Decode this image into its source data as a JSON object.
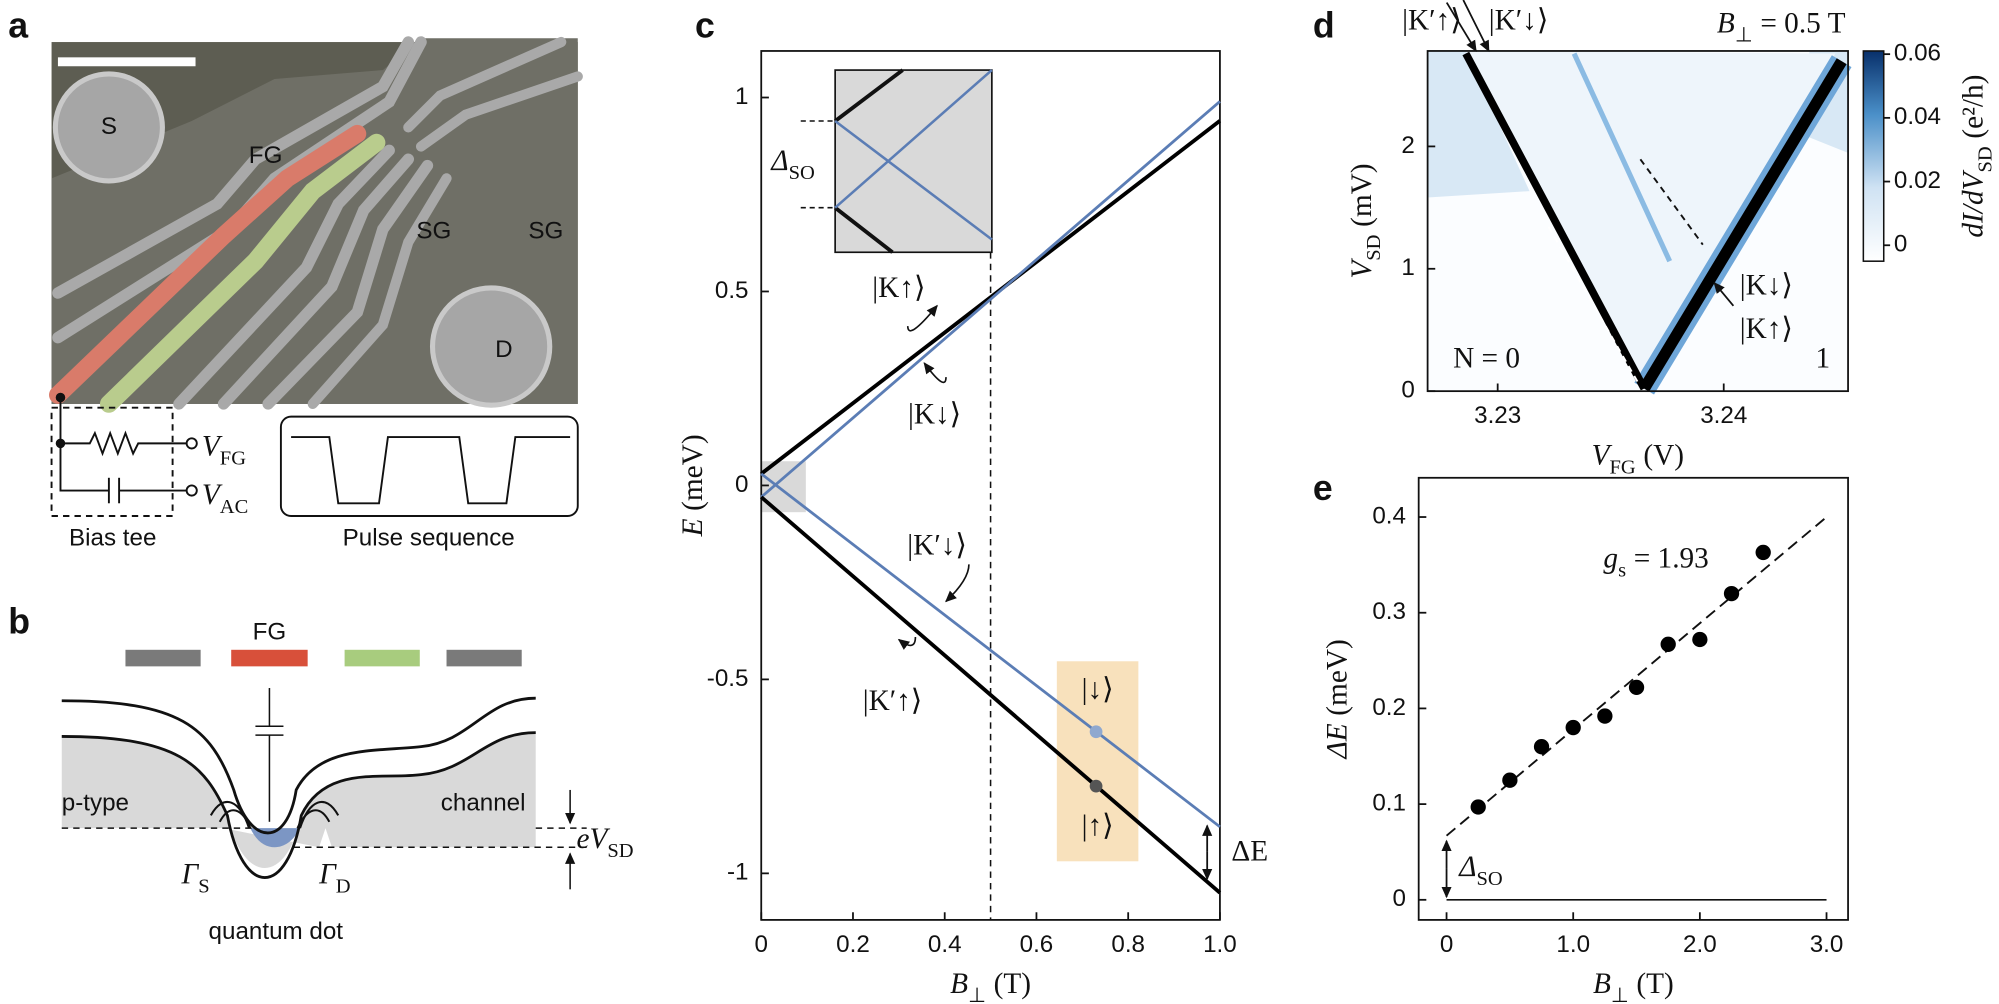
{
  "panel_labels": [
    "a",
    "b",
    "c",
    "d",
    "e"
  ],
  "panel_a": {
    "labels": [
      "S",
      "FG",
      "SG",
      "SG",
      "D"
    ],
    "v_fg": {
      "main": "V",
      "sub": "FG"
    },
    "v_ac": {
      "main": "V",
      "sub": "AC"
    },
    "bias_tee": "Bias tee",
    "pulse": "Pulse sequence"
  },
  "panel_b": {
    "gate": "FG",
    "left": "p-type",
    "right": "channel",
    "bias": {
      "main": "eV",
      "sub": "SD"
    },
    "gamma_s": {
      "main": "Γ",
      "sub": "S"
    },
    "gamma_d": {
      "main": "Γ",
      "sub": "D"
    },
    "dot": "quantum dot"
  },
  "chart_data": [
    {
      "type": "line",
      "x_label": {
        "main": "B",
        "sub": "⊥",
        "rest": "(T)"
      },
      "y_label": {
        "main": "E",
        "rest": "(meV)"
      },
      "xlim": [
        0,
        1
      ],
      "ylim": [
        -1.12,
        1.12
      ],
      "xticks": [
        0,
        0.2,
        0.4,
        0.6,
        0.8,
        {
          "value": 1,
          "label": "1.0"
        }
      ],
      "yticks": [
        -1,
        -0.5,
        0,
        0.5,
        1
      ],
      "x": [
        0,
        1
      ],
      "series": [
        {
          "name": "|K↑⟩",
          "color": "#000000",
          "values": [
            0.03,
            0.94
          ]
        },
        {
          "name": "|K↓⟩",
          "color": "#5b7db5",
          "values": [
            -0.03,
            0.99
          ]
        },
        {
          "name": "|K′↓⟩",
          "color": "#5b7db5",
          "values": [
            0.03,
            -0.88
          ]
        },
        {
          "name": "|K′↑⟩",
          "color": "#000000",
          "values": [
            -0.03,
            -1.05
          ]
        }
      ],
      "marker_line_x": 0.5,
      "points": {
        "x": [
          0.73,
          0.73
        ],
        "values": [
          -0.635,
          -0.775
        ],
        "labels": [
          "|↓⟩",
          "|↑⟩"
        ],
        "colors": [
          "#8fa8cf",
          "#555555"
        ]
      },
      "delta_label": "ΔE",
      "inset_label": {
        "main": "Δ",
        "sub": "SO"
      }
    },
    {
      "type": "heatmap",
      "title": {
        "main": "B",
        "sub": "⊥",
        "rest": "= 0.5 T"
      },
      "x_label": {
        "main": "V",
        "sub": "FG",
        "rest": "(V)"
      },
      "y_label": {
        "main": "V",
        "sub": "SD",
        "rest": "(mV)"
      },
      "colorbar_label": {
        "main": "dI/dV",
        "sub": "SD",
        "rest": "(e²/h)"
      },
      "xlim": [
        3.2269,
        3.2455
      ],
      "ylim": [
        0,
        2.78
      ],
      "xticks": [
        3.23,
        3.24
      ],
      "yticks": [
        0,
        1,
        2
      ],
      "clim": [
        -0.005,
        0.061
      ],
      "cticks": [
        0,
        0.02,
        0.04,
        0.06
      ],
      "annotations": [
        "N = 0",
        "1",
        "|K′↑⟩",
        "|K′↓⟩",
        "|K↓⟩",
        "|K↑⟩"
      ]
    },
    {
      "type": "scatter",
      "x_label": {
        "main": "B",
        "sub": "⊥",
        "rest": "(T)"
      },
      "y_label": {
        "main": "ΔE",
        "rest": "(meV)"
      },
      "xlim": [
        -0.22,
        3.17
      ],
      "ylim": [
        -0.021,
        0.441
      ],
      "xticks": [
        0,
        {
          "value": 1,
          "label": "1.0"
        },
        {
          "value": 2,
          "label": "2.0"
        },
        {
          "value": 3,
          "label": "3.0"
        }
      ],
      "yticks": [
        0,
        0.1,
        0.2,
        0.3,
        0.4
      ],
      "x": [
        0.25,
        0.5,
        0.75,
        1,
        1.25,
        1.5,
        1.75,
        2,
        2.25,
        2.5
      ],
      "values": [
        0.097,
        0.125,
        0.16,
        0.18,
        0.192,
        0.222,
        0.267,
        0.272,
        0.32,
        0.363
      ],
      "color": "#000000",
      "fit": {
        "x": [
          0,
          3
        ],
        "values": [
          0.067,
          0.4
        ]
      },
      "fit_label": {
        "main": "g",
        "sub": "s",
        "rest": "= 1.93"
      },
      "offset_label": {
        "main": "Δ",
        "sub": "SO"
      }
    }
  ]
}
